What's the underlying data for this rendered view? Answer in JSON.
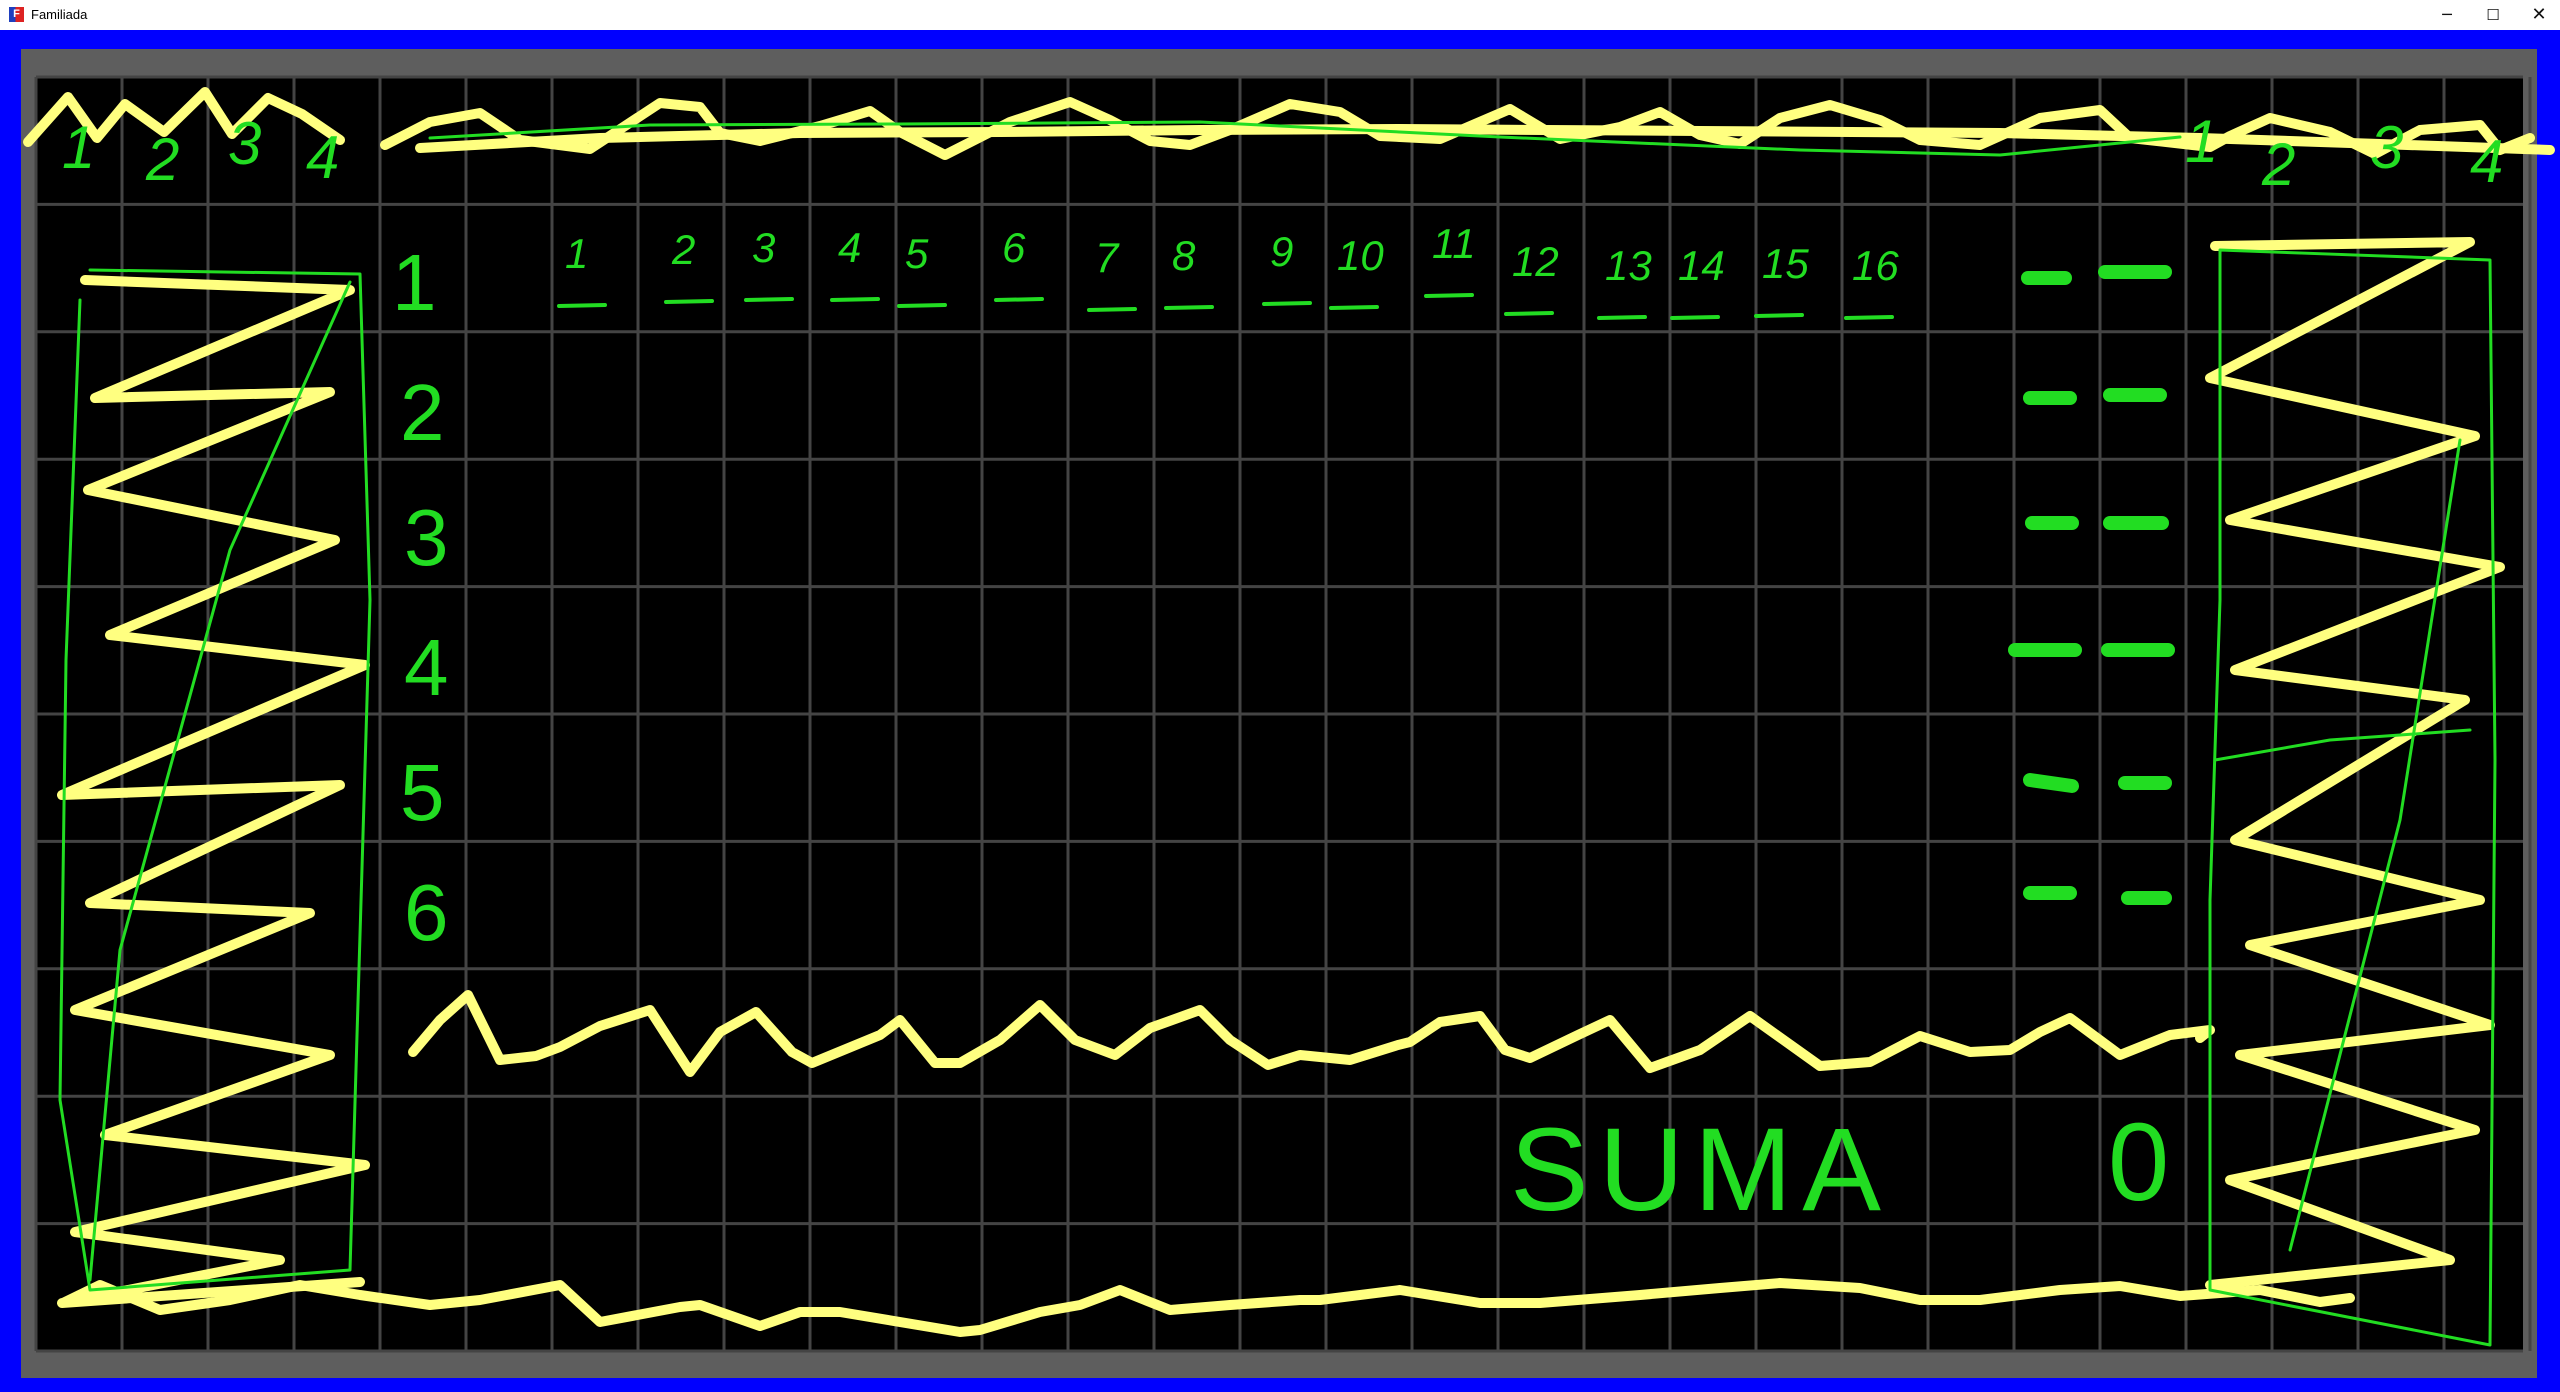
{
  "window": {
    "title": "Familiada",
    "icon_letter": "F",
    "controls": {
      "minimize": "─",
      "maximize": "☐",
      "close": "✕"
    }
  },
  "colors": {
    "frame": "#0000ff",
    "border": "#5e5e5e",
    "board": "#000000",
    "grid": "#444444",
    "green": "#22dd22",
    "yellow": "#ffff80"
  },
  "board": {
    "top_left_numbers": [
      "1",
      "2",
      "3",
      "4"
    ],
    "top_right_numbers": [
      "1",
      "2",
      "3",
      "4"
    ],
    "row_numbers": [
      "1",
      "2",
      "3",
      "4",
      "5",
      "6"
    ],
    "column_numbers": [
      "1",
      "2",
      "3",
      "4",
      "5",
      "6",
      "7",
      "8",
      "9",
      "10",
      "11",
      "12",
      "13",
      "14",
      "15",
      "16"
    ],
    "sum_label": "SUMA",
    "sum_value": "0"
  }
}
